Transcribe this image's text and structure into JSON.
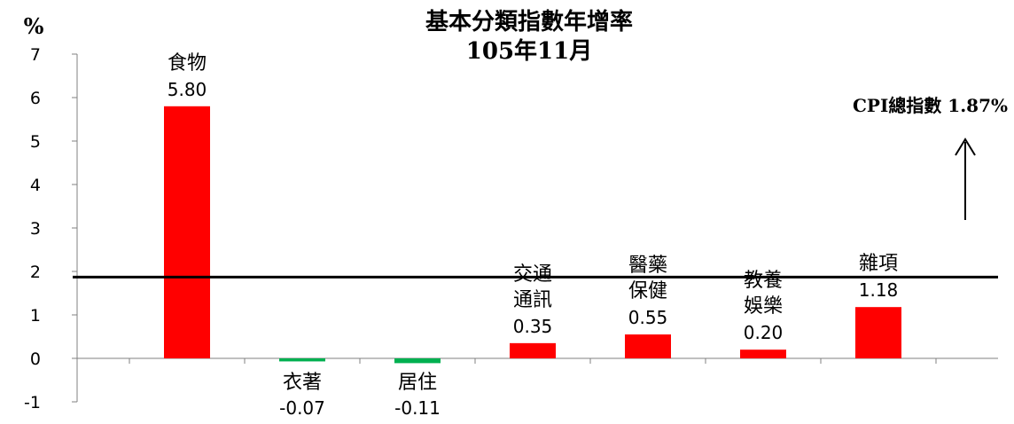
{
  "chart_data": {
    "type": "bar",
    "title": "基本分類指數年增率",
    "subtitle": "105年11月",
    "ylabel": "%",
    "ylim": [
      -1,
      7
    ],
    "yticks": [
      "7",
      "6",
      "5",
      "4",
      "3",
      "2",
      "1",
      "0",
      "-1"
    ],
    "categories": [
      {
        "lines": [
          "食物"
        ],
        "value_label": "5.80"
      },
      {
        "lines": [
          "衣著"
        ],
        "value_label": "-0.07"
      },
      {
        "lines": [
          "居住"
        ],
        "value_label": "-0.11"
      },
      {
        "lines": [
          "交通",
          "通訊"
        ],
        "value_label": "0.35"
      },
      {
        "lines": [
          "醫藥",
          "保健"
        ],
        "value_label": "0.55"
      },
      {
        "lines": [
          "教養",
          "娛樂"
        ],
        "value_label": "0.20"
      },
      {
        "lines": [
          "雜項"
        ],
        "value_label": "1.18"
      }
    ],
    "values": [
      5.8,
      -0.07,
      -0.11,
      0.35,
      0.55,
      0.2,
      1.18
    ],
    "colors": {
      "positive": "#ff0000",
      "negative": "#00b050",
      "reference": "#000000"
    },
    "reference_line": {
      "value": 1.87,
      "label": "CPI總指數 1.87%"
    }
  }
}
